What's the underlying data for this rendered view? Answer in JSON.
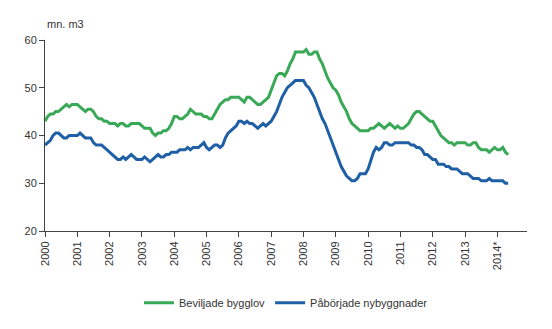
{
  "chart_data": {
    "type": "line",
    "ylabel": "mn. m3",
    "categories": [
      "2000",
      null,
      null,
      null,
      null,
      null,
      null,
      null,
      null,
      null,
      null,
      null,
      "2001",
      null,
      null,
      null,
      null,
      null,
      null,
      null,
      null,
      null,
      null,
      null,
      "2002",
      null,
      null,
      null,
      null,
      null,
      null,
      null,
      null,
      null,
      null,
      null,
      "2003",
      null,
      null,
      null,
      null,
      null,
      null,
      null,
      null,
      null,
      null,
      null,
      "2004",
      null,
      null,
      null,
      null,
      null,
      null,
      null,
      null,
      null,
      null,
      null,
      "2005",
      null,
      null,
      null,
      null,
      null,
      null,
      null,
      null,
      null,
      null,
      null,
      "2006",
      null,
      null,
      null,
      null,
      null,
      null,
      null,
      null,
      null,
      null,
      null,
      "2007",
      null,
      null,
      null,
      null,
      null,
      null,
      null,
      null,
      null,
      null,
      null,
      "2008",
      null,
      null,
      null,
      null,
      null,
      null,
      null,
      null,
      null,
      null,
      null,
      "2009",
      null,
      null,
      null,
      null,
      null,
      null,
      null,
      null,
      null,
      null,
      null,
      "2010",
      null,
      null,
      null,
      null,
      null,
      null,
      null,
      null,
      null,
      null,
      null,
      "2011",
      null,
      null,
      null,
      null,
      null,
      null,
      null,
      null,
      null,
      null,
      null,
      "2012",
      null,
      null,
      null,
      null,
      null,
      null,
      null,
      null,
      null,
      null,
      null,
      "2013",
      null,
      null,
      null,
      null,
      null,
      null,
      null,
      null,
      null,
      null,
      null,
      "2014*",
      null,
      null,
      null,
      null
    ],
    "series": [
      {
        "name": "Beviljade bygglov",
        "color": "#3aa957",
        "values": [
          43,
          44,
          44.5,
          44.5,
          45,
          45,
          45.5,
          46,
          46.5,
          46,
          46.5,
          46.5,
          46.5,
          46,
          45.5,
          45,
          45.5,
          45.5,
          45,
          44,
          43.5,
          43.5,
          43,
          43,
          42.5,
          42.5,
          42.5,
          42,
          42.5,
          42.5,
          42,
          42,
          42.5,
          42.5,
          42.5,
          42.5,
          42,
          41.5,
          41.5,
          41.5,
          40.5,
          40,
          40.5,
          40.5,
          41,
          41,
          41.5,
          42.5,
          44,
          44,
          43.5,
          43.5,
          44,
          44.5,
          45.5,
          45,
          44.5,
          44.5,
          44.5,
          44,
          44,
          43.5,
          43.5,
          44.5,
          45.5,
          46.5,
          47,
          47.5,
          47.5,
          48,
          48,
          48,
          48,
          47.5,
          47,
          48,
          48,
          47.5,
          47,
          46.5,
          46.5,
          47,
          47.5,
          48,
          49.5,
          51,
          52.5,
          53,
          53,
          52.5,
          53.5,
          55,
          56,
          57.5,
          57.5,
          57.5,
          57.5,
          58,
          57,
          57,
          57.5,
          57.5,
          56,
          55,
          53.5,
          52,
          51,
          50,
          49.5,
          48.5,
          47,
          46,
          45,
          43.5,
          42.5,
          42,
          41.5,
          41,
          41,
          41,
          41,
          41.5,
          41.5,
          42,
          42.5,
          42,
          41.5,
          42,
          42.5,
          42,
          41.5,
          42,
          41.5,
          41.5,
          42,
          42.5,
          43.5,
          44.5,
          45,
          45,
          44.5,
          44,
          43.5,
          43,
          43,
          42,
          41,
          40,
          39.5,
          39,
          38.5,
          38.5,
          38,
          38.5,
          38.5,
          38.5,
          38.5,
          38,
          38,
          38.5,
          38.5,
          37.5,
          37,
          37,
          37,
          36.5,
          37,
          37.5,
          37,
          37,
          37.5,
          36.5,
          36
        ]
      },
      {
        "name": "Påbörjade nybyggnader",
        "color": "#1f5fa6",
        "values": [
          38,
          38.5,
          39,
          40,
          40.5,
          40.5,
          40,
          39.5,
          39.5,
          40,
          40,
          40,
          40,
          40.5,
          40,
          39.5,
          39.5,
          39.5,
          38.5,
          38,
          38,
          38,
          37.5,
          37,
          36.5,
          36,
          35.5,
          35,
          35,
          35.5,
          35,
          35.5,
          36,
          35.5,
          35,
          35,
          35,
          35.5,
          35,
          34.5,
          35,
          35.5,
          36,
          35.5,
          35.5,
          36,
          36,
          36.5,
          36.5,
          36.5,
          37,
          37,
          37,
          37.5,
          37,
          37.5,
          37.5,
          37.5,
          38,
          38.5,
          37.5,
          37,
          37.5,
          38,
          38,
          37.5,
          38,
          39.5,
          40.5,
          41,
          41.5,
          42,
          43,
          43,
          42.5,
          43,
          42.5,
          42.5,
          42,
          41.5,
          42,
          42.5,
          42,
          42.5,
          43,
          44,
          45,
          46.5,
          48,
          49,
          50,
          50.5,
          51,
          51.5,
          51.5,
          51.5,
          51.5,
          50.5,
          50,
          49,
          48,
          46.5,
          45,
          43.5,
          42.5,
          41,
          39.5,
          38,
          36.5,
          35,
          33.5,
          32.5,
          31.5,
          31,
          30.5,
          30.5,
          31,
          32,
          32,
          32,
          33,
          35,
          36.5,
          37.5,
          37,
          37.5,
          38.5,
          38.5,
          38,
          38,
          38.5,
          38.5,
          38.5,
          38.5,
          38.5,
          38.5,
          38,
          38,
          37.5,
          37.5,
          37,
          36,
          36,
          35.5,
          35,
          35,
          34,
          34,
          34,
          33.5,
          33.5,
          33,
          33,
          33,
          32.5,
          32,
          32,
          32,
          31.5,
          31,
          31,
          31,
          30.5,
          30.5,
          30.5,
          31,
          30.5,
          30.5,
          30.5,
          30.5,
          30.5,
          30,
          30
        ]
      }
    ],
    "ylim": [
      20,
      60
    ],
    "yticks": [
      20,
      30,
      40,
      50,
      60
    ],
    "grid": false,
    "legend": "bottom"
  }
}
